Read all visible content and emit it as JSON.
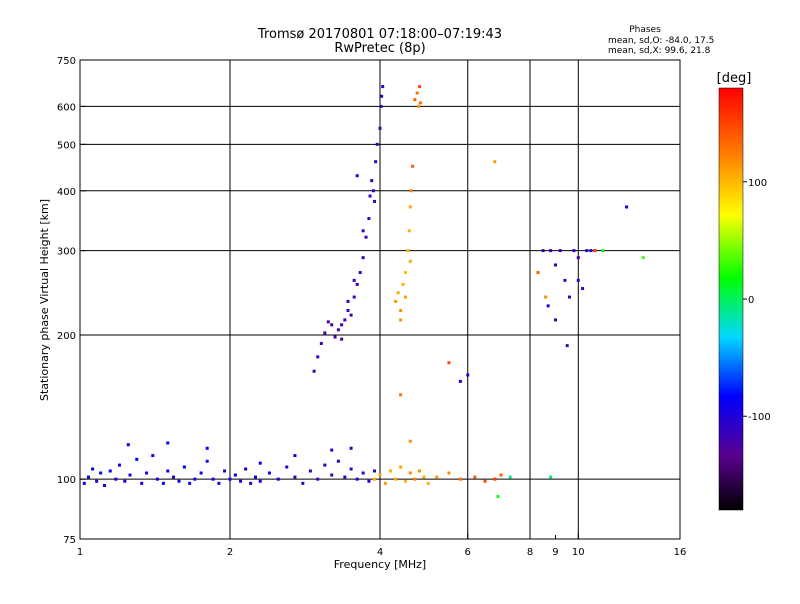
{
  "chart_data": {
    "type": "scatter",
    "title": "Tromsø 20170801 07:18:00–07:19:43",
    "subtitle": "RwPretec (8p)",
    "xlabel": "Frequency [MHz]",
    "ylabel": "Stationary phase Virtual Height [km]",
    "x_scale": "log",
    "y_scale": "log",
    "xlim": [
      1,
      16
    ],
    "ylim": [
      75,
      750
    ],
    "x_ticks": [
      1,
      2,
      4,
      6,
      8,
      10,
      16
    ],
    "x_minor_ticks": [
      9
    ],
    "y_ticks": [
      75,
      100,
      200,
      300,
      400,
      500,
      600,
      750
    ],
    "grid": true,
    "x_gridlines": [
      2,
      4,
      6,
      8,
      10
    ],
    "y_gridlines": [
      100,
      200,
      300,
      400,
      500,
      600
    ],
    "stats": {
      "heading": "Phases",
      "line1": "mean, sd,O: -84.0, 17.5",
      "line2": "mean, sd,X:  99.6, 21.8"
    },
    "colorbar": {
      "label": "[deg]",
      "range": [
        -180,
        180
      ],
      "ticks": [
        100,
        0,
        -100
      ],
      "tick_labels": [
        "100",
        "0",
        "-100"
      ]
    },
    "series": [
      {
        "points": [
          [
            1.02,
            98,
            -95
          ],
          [
            1.04,
            101,
            -90
          ],
          [
            1.06,
            105,
            -92
          ],
          [
            1.08,
            99,
            -105
          ],
          [
            1.1,
            103,
            -88
          ],
          [
            1.12,
            97,
            -100
          ],
          [
            1.15,
            104,
            -93
          ],
          [
            1.18,
            100,
            -110
          ],
          [
            1.2,
            107,
            -98
          ],
          [
            1.23,
            99,
            -95
          ],
          [
            1.26,
            102,
            -102
          ],
          [
            1.3,
            110,
            -92
          ],
          [
            1.33,
            98,
            -97
          ],
          [
            1.36,
            103,
            -108
          ],
          [
            1.4,
            112,
            -90
          ],
          [
            1.43,
            100,
            -100
          ],
          [
            1.47,
            98,
            -94
          ],
          [
            1.5,
            104,
            -99
          ],
          [
            1.54,
            101,
            -112
          ],
          [
            1.58,
            99,
            -96
          ],
          [
            1.62,
            106,
            -91
          ],
          [
            1.66,
            98,
            -104
          ],
          [
            1.7,
            100,
            -98
          ],
          [
            1.75,
            103,
            -95
          ],
          [
            1.8,
            109,
            -93
          ],
          [
            1.85,
            100,
            -101
          ],
          [
            1.9,
            98,
            -96
          ],
          [
            1.95,
            104,
            -110
          ],
          [
            2.0,
            100,
            -98
          ],
          [
            2.05,
            102,
            -94
          ],
          [
            2.1,
            99,
            -100
          ],
          [
            2.15,
            105,
            -97
          ],
          [
            2.2,
            98,
            -112
          ],
          [
            2.25,
            101,
            -92
          ],
          [
            2.3,
            99,
            -96
          ],
          [
            2.4,
            103,
            -99
          ],
          [
            2.5,
            100,
            -105
          ],
          [
            2.6,
            106,
            -108
          ],
          [
            2.7,
            101,
            -113
          ],
          [
            2.8,
            98,
            -118
          ],
          [
            2.9,
            104,
            -115
          ],
          [
            3.0,
            100,
            -120
          ],
          [
            3.1,
            107,
            -112
          ],
          [
            3.2,
            102,
            -118
          ],
          [
            3.3,
            109,
            -116
          ],
          [
            3.4,
            101,
            -110
          ],
          [
            3.5,
            105,
            -115
          ],
          [
            3.6,
            100,
            -113
          ],
          [
            3.7,
            103,
            -110
          ],
          [
            3.8,
            99,
            -108
          ],
          [
            3.9,
            104,
            -112
          ],
          [
            1.25,
            118,
            -94
          ],
          [
            1.5,
            119,
            -88
          ],
          [
            1.8,
            116,
            -90
          ],
          [
            2.3,
            108,
            -93
          ],
          [
            2.7,
            112,
            -104
          ],
          [
            3.2,
            115,
            -110
          ],
          [
            3.5,
            116,
            -112
          ]
        ]
      },
      {
        "points": [
          [
            2.95,
            168,
            -120
          ],
          [
            3.0,
            180,
            -118
          ],
          [
            3.05,
            192,
            -122
          ],
          [
            3.1,
            202,
            -120
          ],
          [
            3.15,
            213,
            -124
          ],
          [
            3.2,
            210,
            -122
          ],
          [
            3.25,
            198,
            -126
          ],
          [
            3.3,
            205,
            -120
          ],
          [
            3.35,
            196,
            -124
          ],
          [
            3.4,
            215,
            -120
          ],
          [
            3.45,
            225,
            -118
          ],
          [
            3.5,
            220,
            -124
          ],
          [
            3.55,
            240,
            -120
          ],
          [
            3.6,
            255,
            -116
          ],
          [
            3.65,
            270,
            -118
          ],
          [
            3.7,
            290,
            -114
          ],
          [
            3.75,
            320,
            -120
          ],
          [
            3.8,
            350,
            -116
          ],
          [
            3.82,
            390,
            -118
          ],
          [
            3.85,
            420,
            -116
          ],
          [
            3.88,
            400,
            -114
          ],
          [
            3.9,
            380,
            -118
          ],
          [
            3.92,
            460,
            -114
          ],
          [
            3.95,
            500,
            -120
          ],
          [
            4.0,
            540,
            -118
          ],
          [
            4.02,
            600,
            -116
          ],
          [
            4.03,
            630,
            -120
          ],
          [
            4.05,
            660,
            -117
          ],
          [
            3.6,
            430,
            -112
          ],
          [
            3.7,
            330,
            -114
          ],
          [
            3.55,
            260,
            -118
          ],
          [
            3.45,
            235,
            -116
          ],
          [
            3.35,
            210,
            -122
          ]
        ]
      },
      {
        "points": [
          [
            4.3,
            235,
            115
          ],
          [
            4.35,
            245,
            110
          ],
          [
            4.4,
            225,
            120
          ],
          [
            4.45,
            255,
            105
          ],
          [
            4.5,
            270,
            100
          ],
          [
            4.55,
            300,
            100
          ],
          [
            4.58,
            330,
            105
          ],
          [
            4.6,
            370,
            110
          ],
          [
            4.62,
            400,
            125
          ],
          [
            4.65,
            450,
            140
          ],
          [
            4.7,
            620,
            140
          ],
          [
            4.75,
            640,
            130
          ],
          [
            4.78,
            600,
            118
          ],
          [
            4.8,
            660,
            150
          ],
          [
            4.82,
            610,
            135
          ],
          [
            4.4,
            215,
            118
          ],
          [
            4.5,
            240,
            112
          ],
          [
            4.6,
            285,
            108
          ]
        ]
      },
      {
        "points": [
          [
            3.9,
            100,
            110
          ],
          [
            4.0,
            102,
            112
          ],
          [
            4.1,
            98,
            115
          ],
          [
            4.2,
            104,
            108
          ],
          [
            4.3,
            100,
            112
          ],
          [
            4.4,
            106,
            110
          ],
          [
            4.5,
            99,
            104
          ],
          [
            4.6,
            103,
            120
          ],
          [
            4.7,
            100,
            125
          ],
          [
            4.8,
            104,
            118
          ],
          [
            4.9,
            101,
            108
          ],
          [
            5.0,
            98,
            106
          ],
          [
            5.2,
            101,
            115
          ],
          [
            5.5,
            103,
            122
          ],
          [
            5.8,
            100,
            135
          ],
          [
            6.2,
            101,
            140
          ],
          [
            6.5,
            99,
            148
          ],
          [
            6.8,
            100,
            155
          ],
          [
            7.0,
            102,
            140
          ],
          [
            7.3,
            101,
            -10
          ]
        ]
      },
      {
        "points": [
          [
            8.5,
            300,
            -120
          ],
          [
            8.8,
            300,
            -118
          ],
          [
            9.0,
            280,
            -115
          ],
          [
            9.2,
            300,
            -122
          ],
          [
            9.4,
            260,
            -120
          ],
          [
            9.6,
            240,
            -118
          ],
          [
            9.8,
            300,
            -116
          ],
          [
            10.0,
            290,
            -120
          ],
          [
            10.2,
            250,
            -114
          ],
          [
            10.4,
            300,
            -112
          ],
          [
            10.6,
            300,
            -110
          ],
          [
            10.8,
            300,
            -115
          ],
          [
            9.0,
            215,
            -120
          ],
          [
            9.5,
            190,
            -118
          ],
          [
            8.7,
            230,
            -112
          ],
          [
            10.0,
            260,
            -110
          ]
        ]
      },
      {
        "points": [
          [
            5.5,
            175,
            150
          ],
          [
            6.0,
            165,
            -110
          ],
          [
            6.8,
            460,
            115
          ],
          [
            8.3,
            270,
            140
          ],
          [
            8.6,
            240,
            120
          ],
          [
            10.8,
            300,
            150
          ],
          [
            11.2,
            300,
            10
          ],
          [
            12.5,
            370,
            -100
          ],
          [
            13.5,
            290,
            30
          ],
          [
            5.8,
            160,
            -100
          ],
          [
            4.6,
            120,
            120
          ],
          [
            4.4,
            150,
            130
          ],
          [
            6.9,
            92,
            20
          ],
          [
            8.8,
            101,
            -5
          ]
        ]
      }
    ]
  }
}
